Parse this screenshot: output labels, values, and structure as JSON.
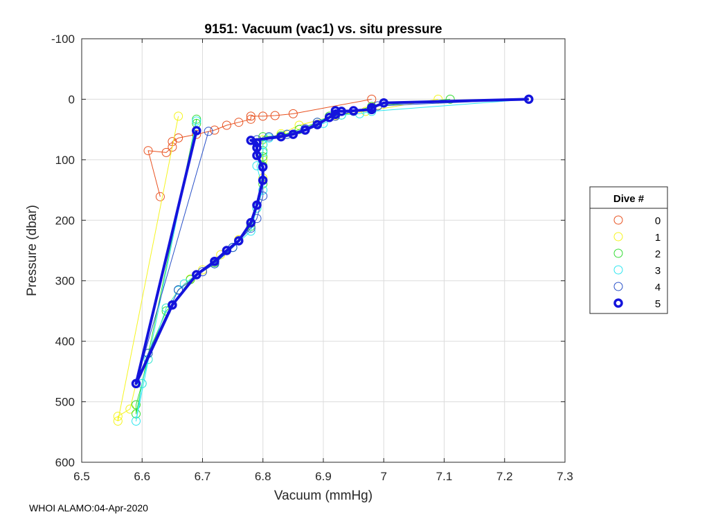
{
  "chart_data": {
    "type": "line",
    "title": "9151: Vacuum (vac1) vs. situ pressure",
    "xlabel": "Vacuum (mmHg)",
    "ylabel": "Pressure (dbar)",
    "xlim": [
      6.5,
      7.3
    ],
    "ylim": [
      -100,
      600
    ],
    "y_reversed": true,
    "grid": true,
    "x_ticks": [
      6.5,
      6.6,
      6.7,
      6.8,
      6.9,
      7,
      7.1,
      7.2,
      7.3
    ],
    "x_tick_labels": [
      "6.5",
      "6.6",
      "6.7",
      "6.8",
      "6.9",
      "7",
      "7.1",
      "7.2",
      "7.3"
    ],
    "y_ticks": [
      -100,
      0,
      100,
      200,
      300,
      400,
      500,
      600
    ],
    "y_tick_labels": [
      "-100",
      "0",
      "100",
      "200",
      "300",
      "400",
      "500",
      "600"
    ],
    "legend": {
      "title": "Dive #",
      "placement": "outside-right"
    },
    "series": [
      {
        "name": "0",
        "color": "#e8501e",
        "points": [
          [
            6.98,
            0
          ],
          [
            6.85,
            24
          ],
          [
            6.82,
            27
          ],
          [
            6.8,
            28
          ],
          [
            6.78,
            28
          ],
          [
            6.78,
            33
          ],
          [
            6.76,
            38
          ],
          [
            6.74,
            43
          ],
          [
            6.72,
            51
          ],
          [
            6.69,
            58
          ],
          [
            6.66,
            64
          ],
          [
            6.65,
            70
          ],
          [
            6.65,
            79
          ],
          [
            6.64,
            88
          ],
          [
            6.61,
            85
          ],
          [
            6.63,
            161
          ]
        ]
      },
      {
        "name": "1",
        "color": "#f5f51e",
        "points": [
          [
            7.09,
            0
          ],
          [
            6.97,
            20
          ],
          [
            6.92,
            27
          ],
          [
            6.86,
            43
          ],
          [
            6.83,
            57
          ],
          [
            6.8,
            67
          ],
          [
            6.79,
            80
          ],
          [
            6.8,
            100
          ],
          [
            6.8,
            130
          ],
          [
            6.79,
            175
          ],
          [
            6.78,
            205
          ],
          [
            6.76,
            232
          ],
          [
            6.73,
            257
          ],
          [
            6.7,
            282
          ],
          [
            6.68,
            297
          ],
          [
            6.66,
            315
          ],
          [
            6.64,
            345
          ],
          [
            6.61,
            430
          ],
          [
            6.59,
            470
          ],
          [
            6.58,
            512
          ],
          [
            6.56,
            524
          ],
          [
            6.56,
            532
          ],
          [
            6.66,
            28
          ]
        ]
      },
      {
        "name": "2",
        "color": "#32dc32",
        "points": [
          [
            7.11,
            0
          ],
          [
            6.98,
            12
          ],
          [
            6.93,
            26
          ],
          [
            6.91,
            28
          ],
          [
            6.89,
            38
          ],
          [
            6.86,
            50
          ],
          [
            6.83,
            60
          ],
          [
            6.8,
            62
          ],
          [
            6.8,
            75
          ],
          [
            6.8,
            85
          ],
          [
            6.8,
            95
          ],
          [
            6.8,
            110
          ],
          [
            6.8,
            140
          ],
          [
            6.79,
            180
          ],
          [
            6.78,
            210
          ],
          [
            6.75,
            245
          ],
          [
            6.72,
            270
          ],
          [
            6.68,
            298
          ],
          [
            6.65,
            340
          ],
          [
            6.64,
            350
          ],
          [
            6.61,
            420
          ],
          [
            6.6,
            470
          ],
          [
            6.59,
            505
          ],
          [
            6.59,
            520
          ],
          [
            6.69,
            33
          ],
          [
            6.69,
            40
          ]
        ]
      },
      {
        "name": "3",
        "color": "#2ce6f0",
        "points": [
          [
            7.24,
            0
          ],
          [
            6.98,
            20
          ],
          [
            6.96,
            24
          ],
          [
            6.93,
            26
          ],
          [
            6.9,
            40
          ],
          [
            6.87,
            49
          ],
          [
            6.84,
            58
          ],
          [
            6.81,
            64
          ],
          [
            6.8,
            75
          ],
          [
            6.8,
            88
          ],
          [
            6.79,
            110
          ],
          [
            6.8,
            150
          ],
          [
            6.79,
            180
          ],
          [
            6.78,
            218
          ],
          [
            6.75,
            245
          ],
          [
            6.72,
            272
          ],
          [
            6.69,
            290
          ],
          [
            6.67,
            305
          ],
          [
            6.66,
            316
          ],
          [
            6.64,
            345
          ],
          [
            6.61,
            430
          ],
          [
            6.6,
            470
          ],
          [
            6.59,
            532
          ],
          [
            6.69,
            36
          ]
        ]
      },
      {
        "name": "4",
        "color": "#2850c8",
        "points": [
          [
            7.24,
            0
          ],
          [
            6.99,
            11
          ],
          [
            6.98,
            17
          ],
          [
            6.95,
            20
          ],
          [
            6.92,
            28
          ],
          [
            6.89,
            38
          ],
          [
            6.87,
            49
          ],
          [
            6.84,
            58
          ],
          [
            6.81,
            62
          ],
          [
            6.79,
            67
          ],
          [
            6.79,
            80
          ],
          [
            6.79,
            93
          ],
          [
            6.8,
            112
          ],
          [
            6.8,
            160
          ],
          [
            6.79,
            197
          ],
          [
            6.78,
            213
          ],
          [
            6.75,
            245
          ],
          [
            6.72,
            272
          ],
          [
            6.7,
            285
          ],
          [
            6.66,
            315
          ],
          [
            6.61,
            420
          ],
          [
            6.59,
            470
          ],
          [
            6.71,
            53
          ]
        ]
      },
      {
        "name": "5",
        "color": "#1414dc",
        "bold": true,
        "points": [
          [
            7.24,
            0
          ],
          [
            7.0,
            6
          ],
          [
            6.98,
            14
          ],
          [
            6.98,
            17
          ],
          [
            6.95,
            19
          ],
          [
            6.93,
            20
          ],
          [
            6.92,
            19
          ],
          [
            6.92,
            25
          ],
          [
            6.91,
            30
          ],
          [
            6.89,
            42
          ],
          [
            6.87,
            51
          ],
          [
            6.85,
            58
          ],
          [
            6.83,
            62
          ],
          [
            6.78,
            68
          ],
          [
            6.79,
            72
          ],
          [
            6.79,
            80
          ],
          [
            6.79,
            93
          ],
          [
            6.8,
            112
          ],
          [
            6.8,
            134
          ],
          [
            6.79,
            175
          ],
          [
            6.78,
            204
          ],
          [
            6.76,
            234
          ],
          [
            6.74,
            250
          ],
          [
            6.72,
            268
          ],
          [
            6.69,
            290
          ],
          [
            6.65,
            340
          ],
          [
            6.59,
            470
          ],
          [
            6.69,
            52
          ]
        ]
      }
    ]
  },
  "footer": "WHOI ALAMO:04-Apr-2020"
}
